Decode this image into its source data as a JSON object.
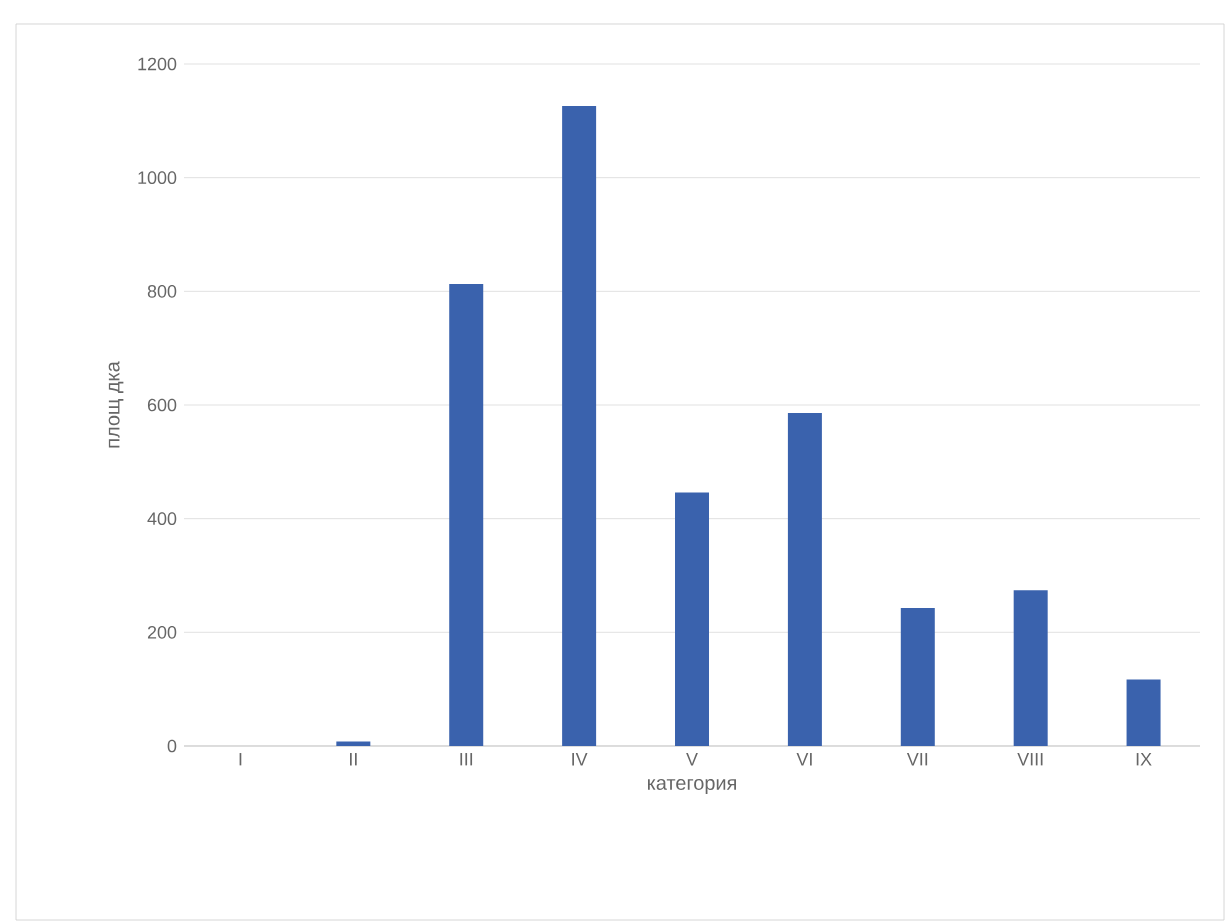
{
  "chart_data": {
    "type": "bar",
    "xlabel": "категория",
    "ylabel": "площ дка",
    "categories": [
      "I",
      "II",
      "III",
      "IV",
      "V",
      "VI",
      "VII",
      "VIII",
      "IX"
    ],
    "values": [
      0,
      8,
      813,
      1126,
      446,
      586,
      243,
      274,
      117
    ],
    "color": "#3a62ad",
    "ylim": [
      0,
      1200
    ],
    "yticks": [
      0,
      200,
      400,
      600,
      800,
      1000,
      1200
    ],
    "grid": "y"
  }
}
